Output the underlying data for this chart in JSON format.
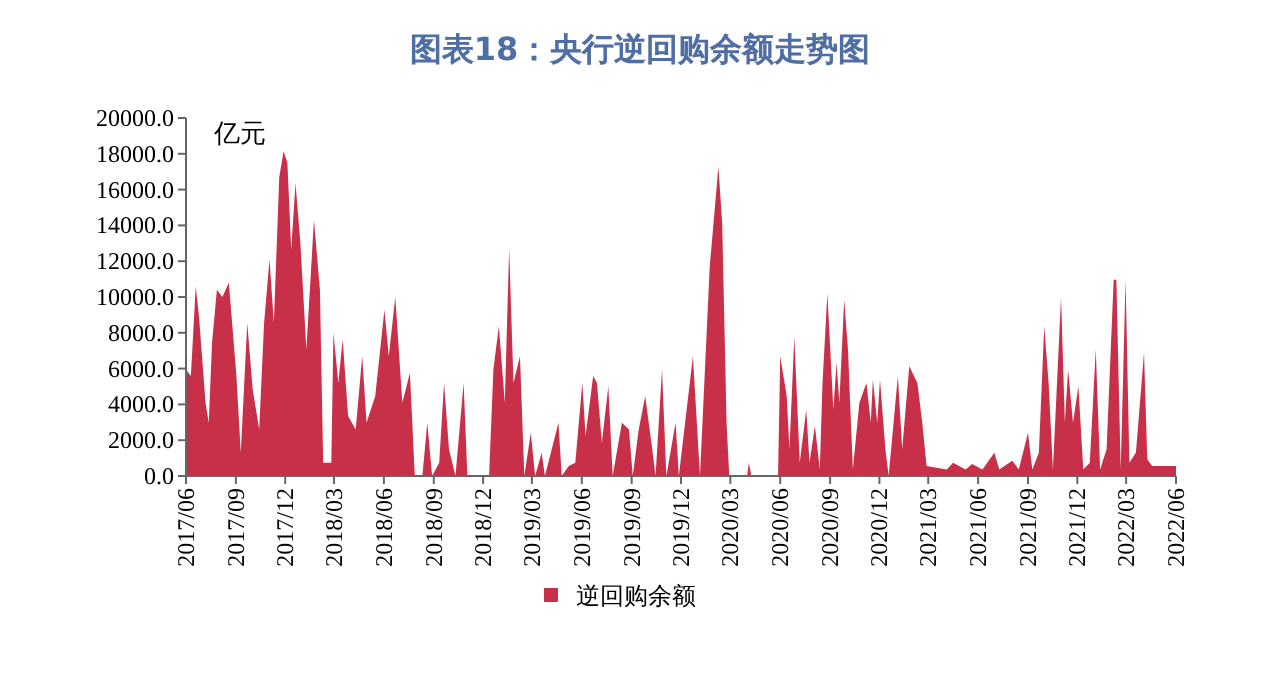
{
  "chart_data": {
    "type": "area",
    "title": "图表18：央行逆回购余额走势图",
    "ylabel": "亿元",
    "legend": "bottom",
    "grid": false,
    "xlim": [
      "2017-06",
      "2022-06"
    ],
    "xticks": [
      {
        "value": "2017-06",
        "label": "2017/06"
      },
      {
        "value": "2017-09",
        "label": "2017/09"
      },
      {
        "value": "2017-12",
        "label": "2017/12"
      },
      {
        "value": "2018-03",
        "label": "2018/03"
      },
      {
        "value": "2018-06",
        "label": "2018/06"
      },
      {
        "value": "2018-09",
        "label": "2018/09"
      },
      {
        "value": "2018-12",
        "label": "2018/12"
      },
      {
        "value": "2019-03",
        "label": "2019/03"
      },
      {
        "value": "2019-06",
        "label": "2019/06"
      },
      {
        "value": "2019-09",
        "label": "2019/09"
      },
      {
        "value": "2019-12",
        "label": "2019/12"
      },
      {
        "value": "2020-03",
        "label": "2020/03"
      },
      {
        "value": "2020-06",
        "label": "2020/06"
      },
      {
        "value": "2020-09",
        "label": "2020/09"
      },
      {
        "value": "2020-12",
        "label": "2020/12"
      },
      {
        "value": "2021-03",
        "label": "2021/03"
      },
      {
        "value": "2021-06",
        "label": "2021/06"
      },
      {
        "value": "2021-09",
        "label": "2021/09"
      },
      {
        "value": "2021-12",
        "label": "2021/12"
      },
      {
        "value": "2022-03",
        "label": "2022/03"
      },
      {
        "value": "2022-06",
        "label": "2022/06"
      }
    ],
    "ylim": [
      0,
      20000
    ],
    "yticks": [
      {
        "value": 0,
        "label": "0.0"
      },
      {
        "value": 2000,
        "label": "2000.0"
      },
      {
        "value": 4000,
        "label": "4000.0"
      },
      {
        "value": 6000,
        "label": "6000.0"
      },
      {
        "value": 8000,
        "label": "8000.0"
      },
      {
        "value": 10000,
        "label": "10000.0"
      },
      {
        "value": 12000,
        "label": "12000.0"
      },
      {
        "value": 14000,
        "label": "14000.0"
      },
      {
        "value": 16000,
        "label": "16000.0"
      },
      {
        "value": 18000,
        "label": "18000.0"
      },
      {
        "value": 20000,
        "label": "20000.0"
      }
    ],
    "x": [
      "2017-06-01",
      "2017-06-10",
      "2017-06-19",
      "2017-06-25",
      "2017-07-07",
      "2017-07-13",
      "2017-07-19",
      "2017-07-28",
      "2017-08-07",
      "2017-08-19",
      "2017-09-02",
      "2017-09-10",
      "2017-09-22",
      "2017-10-02",
      "2017-10-14",
      "2017-10-23",
      "2017-11-02",
      "2017-11-10",
      "2017-11-20",
      "2017-11-28",
      "2017-12-05",
      "2017-12-12",
      "2017-12-20",
      "2017-12-29",
      "2018-01-09",
      "2018-01-23",
      "2018-02-03",
      "2018-02-09",
      "2018-02-24",
      "2018-02-28",
      "2018-03-09",
      "2018-03-17",
      "2018-03-27",
      "2018-04-10",
      "2018-04-22",
      "2018-04-30",
      "2018-05-16",
      "2018-06-02",
      "2018-06-10",
      "2018-06-22",
      "2018-07-05",
      "2018-07-19",
      "2018-07-28",
      "2018-08-11",
      "2018-08-20",
      "2018-08-29",
      "2018-09-11",
      "2018-09-20",
      "2018-09-29",
      "2018-10-11",
      "2018-10-26",
      "2018-11-02",
      "2018-12-12",
      "2018-12-20",
      "2018-12-30",
      "2019-01-10",
      "2019-01-18",
      "2019-01-26",
      "2019-02-07",
      "2019-02-15",
      "2019-02-27",
      "2019-03-07",
      "2019-03-19",
      "2019-03-25",
      "2019-04-19",
      "2019-04-25",
      "2019-05-08",
      "2019-05-20",
      "2019-06-02",
      "2019-06-08",
      "2019-06-22",
      "2019-06-29",
      "2019-07-08",
      "2019-07-20",
      "2019-07-28",
      "2019-08-14",
      "2019-08-27",
      "2019-09-03",
      "2019-09-14",
      "2019-09-26",
      "2019-10-09",
      "2019-10-15",
      "2019-10-27",
      "2019-11-04",
      "2019-11-21",
      "2019-11-27",
      "2019-12-23",
      "2020-01-05",
      "2020-01-23",
      "2020-02-08",
      "2020-02-15",
      "2020-02-23",
      "2020-02-28",
      "2020-04-01",
      "2020-04-04",
      "2020-04-09",
      "2020-05-28",
      "2020-06-01",
      "2020-06-13",
      "2020-06-18",
      "2020-06-27",
      "2020-07-07",
      "2020-07-19",
      "2020-07-25",
      "2020-08-04",
      "2020-08-13",
      "2020-08-18",
      "2020-08-27",
      "2020-09-07",
      "2020-09-13",
      "2020-09-18",
      "2020-09-27",
      "2020-10-04",
      "2020-10-13",
      "2020-10-25",
      "2020-11-07",
      "2020-11-15",
      "2020-11-19",
      "2020-11-27",
      "2020-12-02",
      "2020-12-12",
      "2020-12-18",
      "2021-01-04",
      "2021-01-12",
      "2021-01-25",
      "2021-02-09",
      "2021-02-18",
      "2021-02-26",
      "2021-04-04",
      "2021-04-16",
      "2021-05-09",
      "2021-05-21",
      "2021-06-09",
      "2021-07-01",
      "2021-07-10",
      "2021-08-03",
      "2021-08-15",
      "2021-09-01",
      "2021-09-09",
      "2021-09-21",
      "2021-10-01",
      "2021-10-09",
      "2021-10-17",
      "2021-11-01",
      "2021-11-08",
      "2021-11-14",
      "2021-11-23",
      "2021-12-03",
      "2021-12-12",
      "2021-12-24",
      "2022-01-04",
      "2022-01-12",
      "2022-01-24",
      "2022-02-06",
      "2022-02-11",
      "2022-02-19",
      "2022-02-28",
      "2022-03-07",
      "2022-03-19",
      "2022-04-03",
      "2022-04-09",
      "2022-04-18",
      "2022-06-01"
    ],
    "series": [
      {
        "name": "逆回购余额",
        "color": "#c8304a",
        "values": [
          5950,
          5580,
          10600,
          8900,
          4090,
          2970,
          7430,
          10400,
          10000,
          10800,
          5580,
          1300,
          8550,
          4830,
          2600,
          8550,
          12100,
          8550,
          16700,
          18140,
          17500,
          12640,
          16350,
          13000,
          7060,
          14300,
          10400,
          740,
          740,
          8000,
          5200,
          7620,
          3350,
          2600,
          6690,
          2970,
          4460,
          9290,
          6690,
          10000,
          4090,
          5760,
          0,
          0,
          2970,
          0,
          740,
          5200,
          1490,
          0,
          5200,
          0,
          0,
          5950,
          8360,
          4090,
          12710,
          5200,
          6690,
          0,
          2420,
          0,
          1300,
          0,
          2970,
          0,
          560,
          740,
          5200,
          2230,
          5580,
          5200,
          1860,
          5020,
          0,
          2970,
          2600,
          0,
          2600,
          4460,
          1490,
          0,
          5950,
          0,
          2970,
          0,
          6690,
          0,
          11700,
          17280,
          14100,
          2970,
          0,
          0,
          740,
          0,
          0,
          6690,
          4460,
          1490,
          7800,
          740,
          3720,
          740,
          2790,
          370,
          5200,
          10200,
          3720,
          6320,
          4090,
          9850,
          7060,
          370,
          4090,
          5200,
          2970,
          5390,
          2970,
          5390,
          1490,
          0,
          5580,
          1490,
          6130,
          5200,
          2970,
          560,
          370,
          740,
          370,
          670,
          370,
          1300,
          370,
          850,
          370,
          2420,
          370,
          1300,
          8360,
          5200,
          370,
          10000,
          2970,
          5950,
          2970,
          5020,
          370,
          740,
          7060,
          370,
          1490,
          10960,
          10960,
          370,
          10960,
          740,
          1300,
          6880,
          930,
          560,
          560
        ]
      }
    ]
  }
}
